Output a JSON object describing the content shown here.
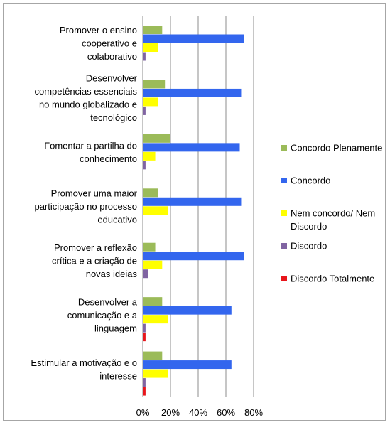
{
  "chart_data": {
    "type": "bar",
    "orientation": "horizontal",
    "categories": [
      [
        "Promover o ensino",
        "cooperativo e",
        "colaborativo"
      ],
      [
        "Desenvolver",
        "competências essenciais",
        "no mundo globalizado e",
        "tecnológico"
      ],
      [
        "Fomentar a partilha do",
        "conhecimento"
      ],
      [
        "Promover uma maior",
        "participação no processo",
        "educativo"
      ],
      [
        "Promover a reflexão",
        "crítica e a criação de",
        "novas ideias"
      ],
      [
        "Desenvolver a",
        "comunicação e a",
        "linguagem"
      ],
      [
        "Estimular a motivação e o",
        "interesse"
      ]
    ],
    "series": [
      {
        "name": "Concordo Plenamente",
        "color": "#9bbb59",
        "values": [
          14,
          16,
          20,
          11,
          9,
          14,
          14
        ]
      },
      {
        "name": "Concordo",
        "color": "#3366ee",
        "values": [
          73,
          71,
          70,
          71,
          73,
          64,
          64
        ]
      },
      {
        "name": "Nem concordo/ Nem Discordo",
        "color": "#ffff00",
        "values": [
          11,
          11,
          9,
          18,
          14,
          18,
          18
        ]
      },
      {
        "name": "Discordo",
        "color": "#8064a2",
        "values": [
          2,
          2,
          2,
          0,
          4,
          2,
          2
        ]
      },
      {
        "name": "Discordo Totalmente",
        "color": "#e8151b",
        "values": [
          0,
          0,
          0,
          0,
          0,
          2,
          2
        ]
      }
    ],
    "xlim": [
      0,
      80
    ],
    "xticks": [
      "0%",
      "20%",
      "40%",
      "60%",
      "80%"
    ],
    "grid": true,
    "legend_position": "right"
  }
}
